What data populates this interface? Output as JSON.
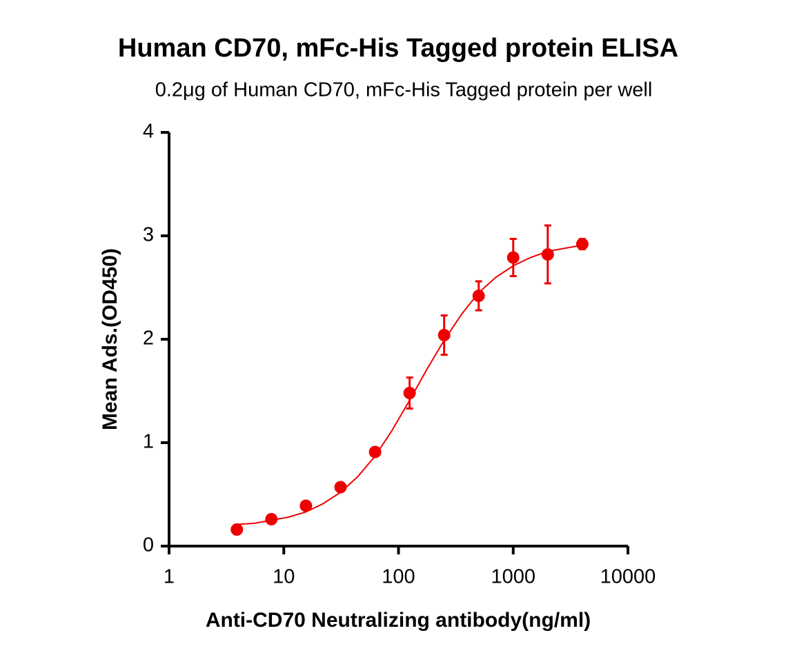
{
  "chart_data": {
    "type": "scatter",
    "title": "Human CD70,  mFc-His Tagged protein ELISA",
    "subtitle": "0.2μg of Human CD70, mFc-His Tagged protein per well",
    "x_label": "Anti-CD70 Neutralizing antibody(ng/ml)",
    "y_label": "Mean Ads.(OD450)",
    "x": [
      3.9,
      7.8,
      15.6,
      31.25,
      62.5,
      125,
      250,
      500,
      1000,
      2000,
      4000
    ],
    "series": [
      {
        "color": "#ee0000",
        "values": [
          0.16,
          0.26,
          0.39,
          0.57,
          0.91,
          1.48,
          2.04,
          2.42,
          2.79,
          2.82,
          2.92
        ],
        "errors": [
          0.01,
          0.01,
          0.02,
          0.02,
          0.02,
          0.15,
          0.19,
          0.14,
          0.18,
          0.28,
          0.05
        ]
      }
    ],
    "fit": {
      "color": "#ee0000",
      "x": [
        3.9,
        5.5,
        7.8,
        11,
        15.6,
        22,
        31.25,
        44,
        62.5,
        88,
        125,
        177,
        250,
        354,
        500,
        707,
        1000,
        1414,
        2000,
        2828,
        4000
      ],
      "values": [
        0.21,
        0.22,
        0.25,
        0.28,
        0.33,
        0.41,
        0.52,
        0.67,
        0.87,
        1.12,
        1.41,
        1.71,
        1.99,
        2.24,
        2.45,
        2.6,
        2.71,
        2.79,
        2.85,
        2.88,
        2.91
      ]
    },
    "x_log": true,
    "xlim": [
      1,
      10000
    ],
    "xticks": [
      1,
      10,
      100,
      1000,
      10000
    ],
    "ylim": [
      0,
      4
    ],
    "yticks": [
      0,
      1,
      2,
      3,
      4
    ]
  }
}
